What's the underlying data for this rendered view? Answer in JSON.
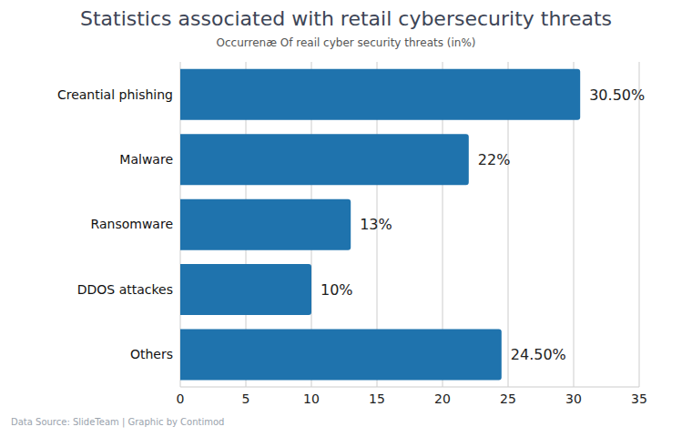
{
  "chart_data": {
    "type": "bar",
    "title": "Statistics associated with retail cybersecurity threats",
    "subtitle": "Occurrenæ Of reail cyber security threats (in%)",
    "source": "Data Source: SlideTeam | Graphic by Contimod",
    "orientation": "horizontal",
    "categories": [
      "Creantial phishing",
      "Malware",
      "Ransomware",
      "DDOS attackes",
      "Others"
    ],
    "values": [
      30.5,
      22,
      13,
      10,
      24.5
    ],
    "value_labels": [
      "30.50%",
      "22%",
      "13%",
      "10%",
      "24.50%"
    ],
    "data_labels": true,
    "color": "#1f73ad",
    "xlim": [
      0,
      35
    ],
    "xticks": [
      0,
      5,
      10,
      15,
      20,
      25,
      30,
      35
    ],
    "grid": true
  }
}
